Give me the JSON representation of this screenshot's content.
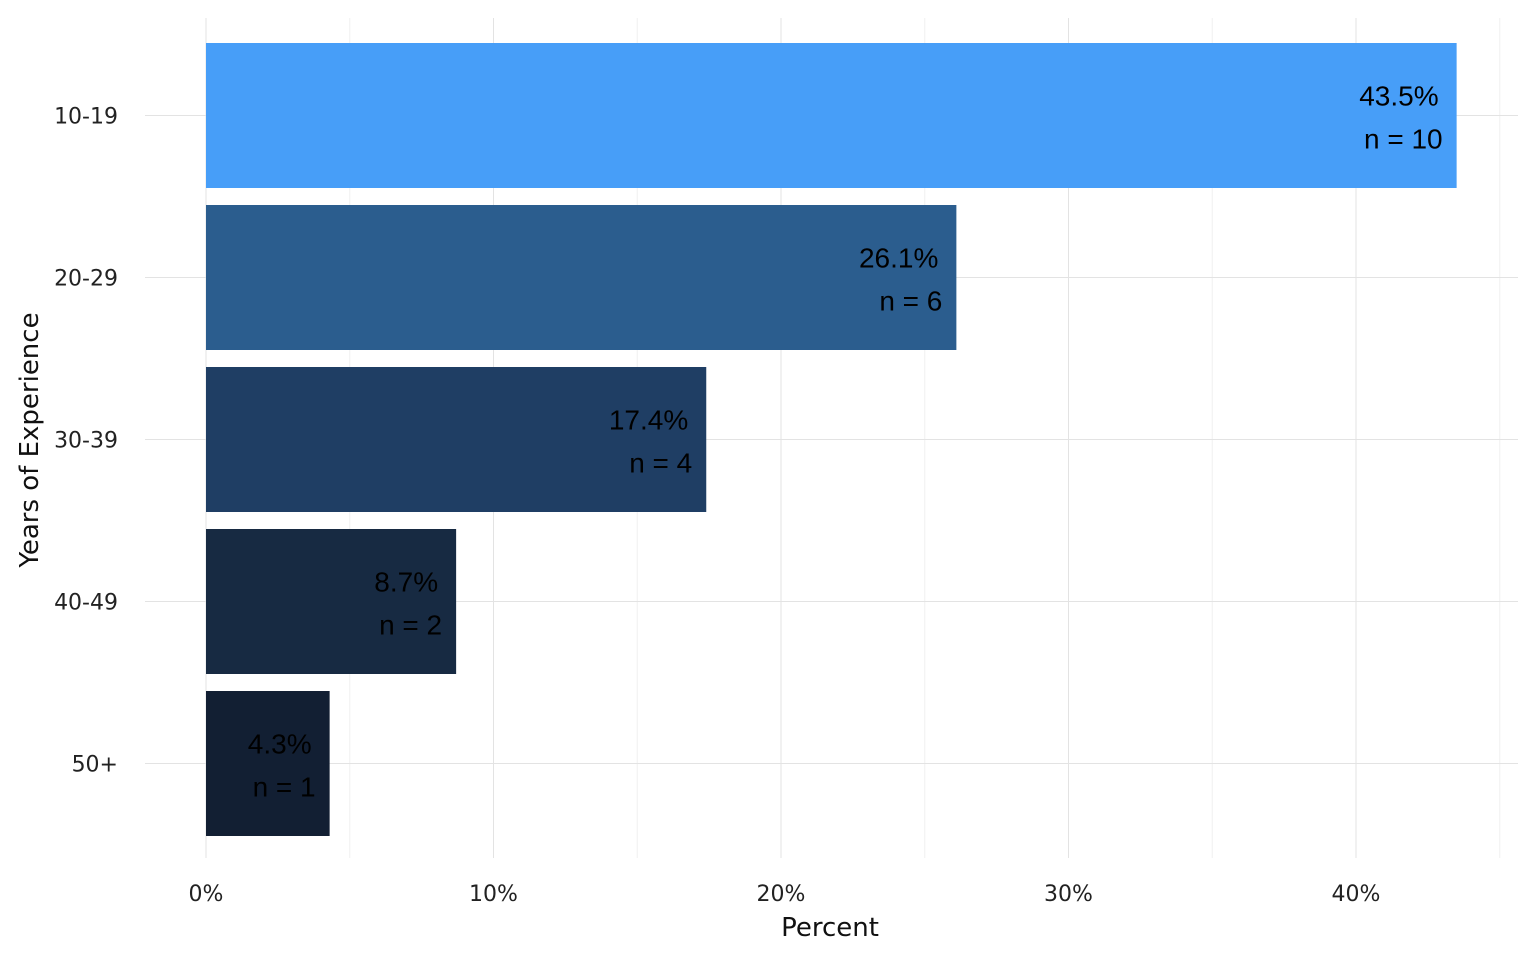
{
  "chart_data": {
    "type": "bar",
    "orientation": "horizontal",
    "title": "",
    "xlabel": "Percent",
    "ylabel": "Years of Experience",
    "categories": [
      "10-19",
      "20-29",
      "30-39",
      "40-49",
      "50+"
    ],
    "values": [
      43.5,
      26.1,
      17.4,
      8.7,
      4.3
    ],
    "counts": [
      10,
      6,
      4,
      2,
      1
    ],
    "data_labels": [
      {
        "percent": "43.5%",
        "count": "n = 10"
      },
      {
        "percent": "26.1%",
        "count": "n = 6"
      },
      {
        "percent": "17.4%",
        "count": "n = 4"
      },
      {
        "percent": "8.7%",
        "count": "n = 2"
      },
      {
        "percent": "4.3%",
        "count": "n = 1"
      }
    ],
    "xlim": [
      0,
      45
    ],
    "x_ticks": [
      0,
      10,
      20,
      30,
      40
    ],
    "x_tick_labels": [
      "0%",
      "10%",
      "20%",
      "30%",
      "40%"
    ],
    "grid": true,
    "legend": "none",
    "colors": [
      "#479ef8",
      "#2b5d8e",
      "#1f3e64",
      "#172a42",
      "#121f33"
    ]
  }
}
